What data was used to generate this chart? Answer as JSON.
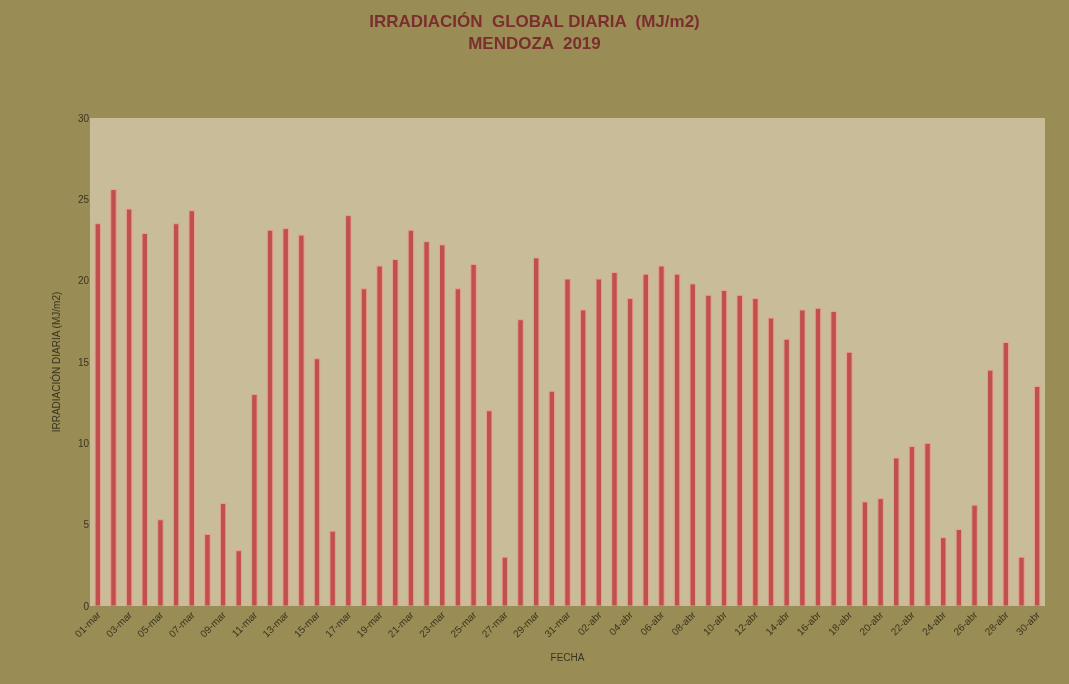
{
  "chart_data": {
    "type": "bar",
    "title": "IRRADIACIÓN  GLOBAL DIARIA  (MJ/m2)\nMENDOZA  2019",
    "xlabel": "FECHA",
    "ylabel": "IRRADIACIÓN DIARIA (MJ/m2)",
    "categories": [
      "01-mar",
      null,
      "03-mar",
      null,
      "05-mar",
      null,
      "07-mar",
      null,
      "09-mar",
      null,
      "11-mar",
      null,
      "13-mar",
      null,
      "15-mar",
      null,
      "17-mar",
      null,
      "19-mar",
      null,
      "21-mar",
      null,
      "23-mar",
      null,
      "25-mar",
      null,
      "27-mar",
      null,
      "29-mar",
      null,
      "31-mar",
      null,
      "02-abr",
      null,
      "04-abr",
      null,
      "06-abr",
      null,
      "08-abr",
      null,
      "10-abr",
      null,
      "12-abr",
      null,
      "14-abr",
      null,
      "16-abr",
      null,
      "18-abr",
      null,
      "20-abr",
      null,
      "22-abr",
      null,
      "24-abr",
      null,
      "26-abr",
      null,
      "28-abr",
      null,
      "30-abr"
    ],
    "values": [
      23.5,
      25.6,
      24.4,
      22.9,
      5.3,
      23.5,
      24.3,
      4.4,
      6.3,
      3.4,
      13.0,
      23.1,
      23.2,
      22.8,
      15.2,
      4.6,
      24.0,
      19.5,
      20.9,
      21.3,
      23.1,
      22.4,
      22.2,
      19.5,
      21.0,
      12.0,
      3.0,
      17.6,
      21.4,
      13.2,
      20.1,
      18.2,
      20.1,
      20.5,
      18.9,
      20.4,
      20.9,
      20.4,
      19.8,
      19.1,
      19.4,
      19.1,
      18.9,
      17.7,
      16.4,
      18.2,
      18.3,
      18.1,
      15.6,
      6.4,
      6.6,
      9.1,
      9.8,
      10.0,
      4.2,
      4.7,
      6.2,
      14.5,
      16.2,
      3.0,
      13.5
    ],
    "color": "#c0504d",
    "ylim": [
      0,
      30
    ],
    "yticks": [
      0,
      5,
      10,
      15,
      20,
      25,
      30
    ],
    "grid": false
  }
}
